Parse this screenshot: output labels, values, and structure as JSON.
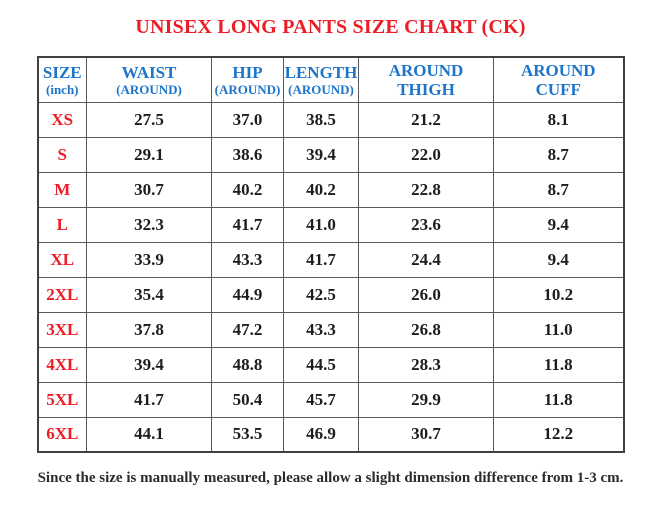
{
  "chart_data": {
    "type": "table",
    "title": "UNISEX LONG PANTS SIZE CHART (CK)",
    "unit": "inch",
    "columns": [
      {
        "line1": "SIZE",
        "line2": "(inch)"
      },
      {
        "line1": "WAIST",
        "line2": "(AROUND)"
      },
      {
        "line1": "HIP",
        "line2": "(AROUND)"
      },
      {
        "line1": "LENGTH",
        "line2": "(AROUND)"
      },
      {
        "line1": "AROUND",
        "line2": "THIGH"
      },
      {
        "line1": "AROUND",
        "line2": "CUFF"
      }
    ],
    "rows": [
      {
        "size": "XS",
        "values": [
          "27.5",
          "37.0",
          "38.5",
          "21.2",
          "8.1"
        ]
      },
      {
        "size": "S",
        "values": [
          "29.1",
          "38.6",
          "39.4",
          "22.0",
          "8.7"
        ]
      },
      {
        "size": "M",
        "values": [
          "30.7",
          "40.2",
          "40.2",
          "22.8",
          "8.7"
        ]
      },
      {
        "size": "L",
        "values": [
          "32.3",
          "41.7",
          "41.0",
          "23.6",
          "9.4"
        ]
      },
      {
        "size": "XL",
        "values": [
          "33.9",
          "43.3",
          "41.7",
          "24.4",
          "9.4"
        ]
      },
      {
        "size": "2XL",
        "values": [
          "35.4",
          "44.9",
          "42.5",
          "26.0",
          "10.2"
        ]
      },
      {
        "size": "3XL",
        "values": [
          "37.8",
          "47.2",
          "43.3",
          "26.8",
          "11.0"
        ]
      },
      {
        "size": "4XL",
        "values": [
          "39.4",
          "48.8",
          "44.5",
          "28.3",
          "11.8"
        ]
      },
      {
        "size": "5XL",
        "values": [
          "41.7",
          "50.4",
          "45.7",
          "29.9",
          "11.8"
        ]
      },
      {
        "size": "6XL",
        "values": [
          "44.1",
          "53.5",
          "46.9",
          "30.7",
          "12.2"
        ]
      }
    ],
    "footnote": "Since the size is manually measured, please allow a slight dimension difference from 1-3 cm."
  },
  "colors": {
    "title_red": "#ee1c25",
    "header_blue": "#1c75ca",
    "value_text": "#1d1d1d",
    "grid_line": "#595959",
    "outer_border": "#404040",
    "background": "#ffffff"
  }
}
